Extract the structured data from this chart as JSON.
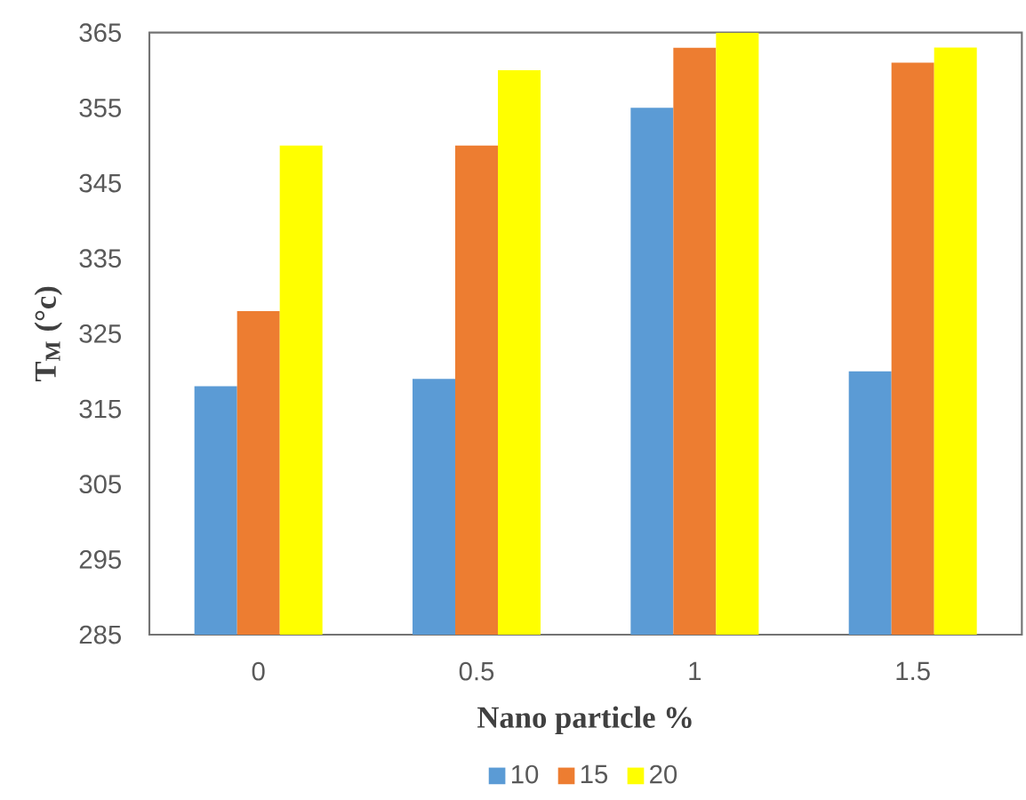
{
  "chart_data": {
    "type": "bar",
    "xlabel": "Nano particle %",
    "ylabel": "T$_{M}$ (°c)",
    "categories": [
      "0",
      "0.5",
      "1",
      "1.5"
    ],
    "series": [
      {
        "name": "10",
        "color": "#5b9bd5",
        "values": [
          318,
          319,
          355,
          320
        ]
      },
      {
        "name": "15",
        "color": "#ed7d31",
        "values": [
          328,
          350,
          363,
          361
        ]
      },
      {
        "name": "20",
        "color": "#ffff00",
        "values": [
          350,
          360,
          365,
          363
        ]
      }
    ],
    "ylim": [
      285,
      365
    ],
    "yticks": [
      285,
      295,
      305,
      315,
      325,
      335,
      345,
      355,
      365
    ],
    "grid": false,
    "legend": "bottom"
  }
}
